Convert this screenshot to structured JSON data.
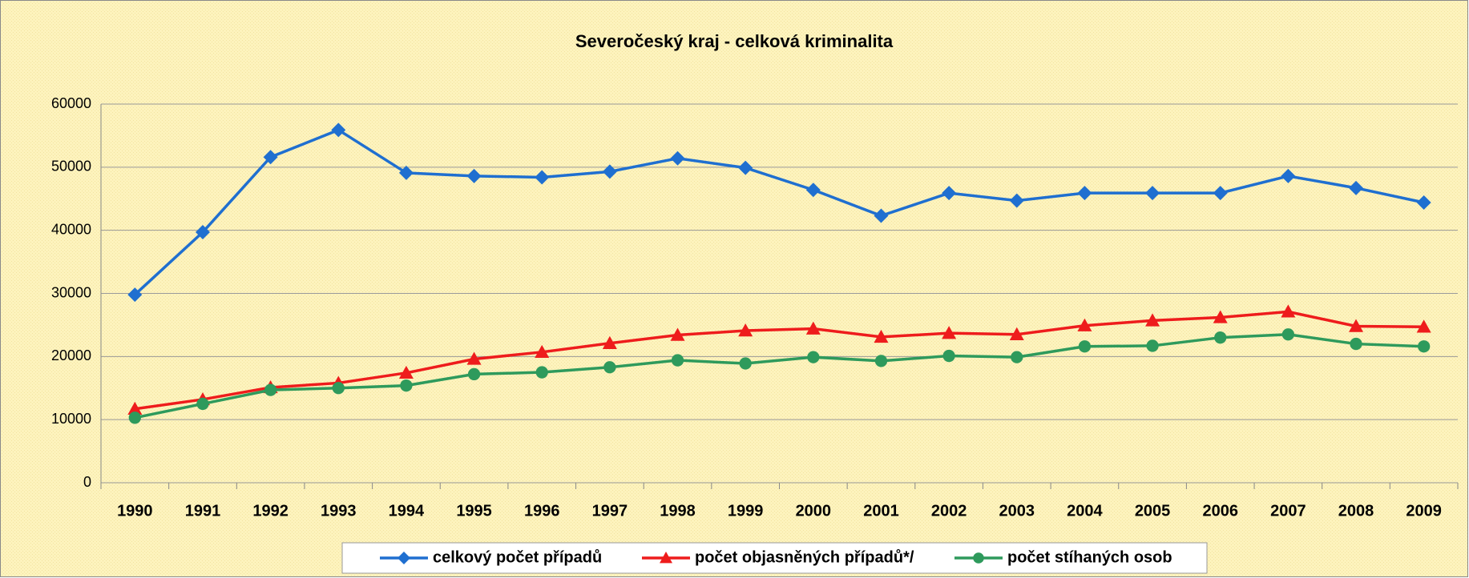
{
  "chart_data": {
    "type": "line",
    "title": "Severočeský kraj - celková kriminalita",
    "categories": [
      "1990",
      "1991",
      "1992",
      "1993",
      "1994",
      "1995",
      "1996",
      "1997",
      "1998",
      "1999",
      "2000",
      "2001",
      "2002",
      "2003",
      "2004",
      "2005",
      "2006",
      "2007",
      "2008",
      "2009"
    ],
    "series": [
      {
        "name": "celkový počet případů",
        "color": "#1f6fd0",
        "marker": "diamond",
        "values": [
          29800,
          39700,
          51600,
          55900,
          49100,
          48600,
          48400,
          49300,
          51400,
          49900,
          46400,
          42300,
          45900,
          44700,
          45900,
          45900,
          45900,
          48600,
          46700,
          44400
        ]
      },
      {
        "name": "počet objasněných případů*/",
        "color": "#ee1c1c",
        "marker": "triangle",
        "values": [
          11700,
          13200,
          15100,
          15800,
          17400,
          19600,
          20700,
          22100,
          23400,
          24100,
          24400,
          23100,
          23700,
          23500,
          24900,
          25700,
          26200,
          27100,
          24800,
          24700
        ]
      },
      {
        "name": "počet stíhaných osob",
        "color": "#2e9a5c",
        "marker": "circle",
        "values": [
          10300,
          12500,
          14700,
          15000,
          15400,
          17200,
          17500,
          18300,
          19400,
          18900,
          19900,
          19300,
          20100,
          19900,
          21600,
          21700,
          23000,
          23500,
          22000,
          21600
        ]
      }
    ],
    "ylim": [
      0,
      60000
    ],
    "yticks": [
      0,
      10000,
      20000,
      30000,
      40000,
      50000,
      60000
    ],
    "grid": true,
    "legend": "bottom"
  }
}
